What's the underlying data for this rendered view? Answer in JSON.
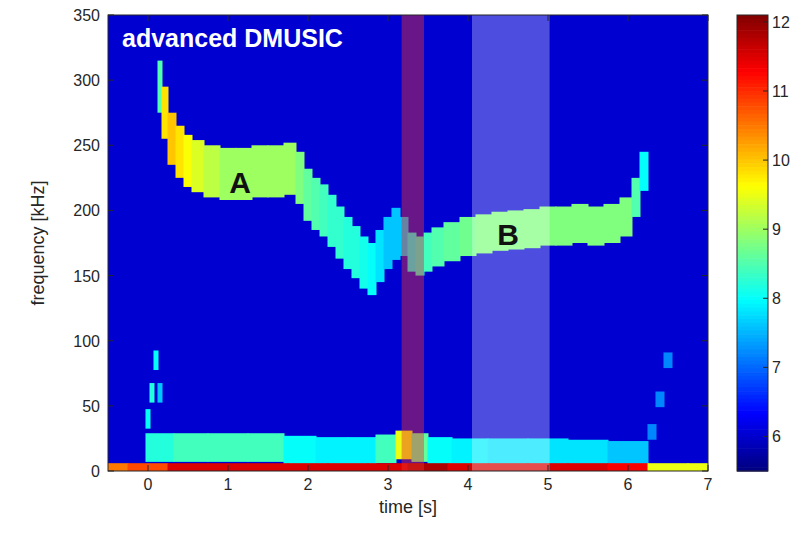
{
  "chart_data": {
    "type": "scatter",
    "title": "advanced DMUSIC",
    "x_label": "time [s]",
    "y_label": "frequency [kHz]",
    "xlim": [
      -0.5,
      7
    ],
    "ylim": [
      0,
      350
    ],
    "xticks": [
      0,
      1,
      2,
      3,
      4,
      5,
      6,
      7
    ],
    "yticks": [
      0,
      50,
      100,
      150,
      200,
      250,
      300,
      350
    ],
    "grid": false,
    "marker": "square",
    "colorbar": {
      "range": [
        5.5,
        12.1
      ],
      "ticks": [
        6,
        7,
        8,
        9,
        10,
        11,
        12
      ]
    },
    "spans": [
      {
        "x0": 3.17,
        "x1": 3.45,
        "color": "#e8302f"
      },
      {
        "x0": 4.05,
        "x1": 5.02,
        "color": "#ffffff"
      }
    ],
    "annotations": [
      {
        "text": "A",
        "x": 1.15,
        "y": 222
      },
      {
        "text": "B",
        "x": 4.5,
        "y": 182
      }
    ],
    "series": [
      {
        "x": [
          0.15,
          0.2,
          0.3,
          0.4,
          0.5,
          0.6,
          0.8,
          1.0,
          1.2,
          1.4,
          1.6,
          1.8,
          1.9,
          2.0,
          2.1,
          2.2,
          2.3,
          2.4,
          2.5,
          2.6,
          2.7,
          2.8,
          2.9,
          3.0,
          3.1
        ],
        "values": [
          295,
          275,
          255,
          245,
          238,
          234,
          230,
          228,
          228,
          230,
          230,
          232,
          225,
          212,
          205,
          200,
          192,
          183,
          175,
          168,
          160,
          155,
          165,
          175,
          182
        ],
        "intensity": [
          8.5,
          9.8,
          10,
          9.8,
          9.6,
          9.4,
          9.2,
          9,
          9,
          9,
          9,
          9,
          8.8,
          8.6,
          8.5,
          8.4,
          8.3,
          8.3,
          8.2,
          8.2,
          8.1,
          8,
          7.8,
          7.6,
          7.6
        ],
        "bandwidth": 40
      },
      {
        "x": [
          3.2,
          3.3,
          3.4,
          3.5,
          3.6,
          3.8,
          4.0,
          4.2,
          4.4,
          4.6,
          4.8,
          5.0,
          5.2,
          5.4,
          5.6,
          5.8,
          6.0,
          6.1,
          6.2
        ],
        "values": [
          180,
          168,
          165,
          168,
          172,
          176,
          180,
          182,
          184,
          185,
          186,
          188,
          188,
          190,
          188,
          190,
          195,
          210,
          230
        ],
        "intensity": [
          7.6,
          8,
          8.2,
          8.4,
          8.5,
          8.6,
          8.7,
          8.8,
          8.8,
          8.8,
          8.8,
          8.8,
          8.8,
          8.8,
          8.8,
          8.8,
          8.8,
          8.5,
          8
        ],
        "bandwidth": 30
      },
      {
        "x": [
          0.15,
          0.5,
          1,
          1.5,
          1.9,
          2.3,
          2.7,
          3.0,
          3.2,
          3.4,
          3.6,
          4.0,
          4.5,
          5.0,
          5.5,
          6.0
        ],
        "values": [
          18,
          18,
          18,
          18,
          16,
          15,
          15,
          17,
          20,
          18,
          15,
          14,
          14,
          14,
          13,
          12
        ],
        "intensity": [
          8.2,
          8.4,
          8.4,
          8.4,
          8,
          7.9,
          7.9,
          8.4,
          9.5,
          8.6,
          8,
          7.9,
          7.8,
          7.8,
          7.8,
          7.6
        ],
        "bandwidth": 22
      },
      {
        "x": [
          -0.5,
          0,
          0.5,
          1,
          1.5,
          2,
          2.5,
          3,
          3.5,
          4,
          4.5,
          5,
          5.5,
          6,
          6.5,
          7
        ],
        "values": [
          3,
          3,
          3,
          3,
          3,
          3,
          3,
          3,
          3,
          3,
          3,
          3,
          3,
          3,
          3,
          3
        ],
        "intensity": [
          10.5,
          10.8,
          11.5,
          11.5,
          11.5,
          11.5,
          11.5,
          11.5,
          11.8,
          11.5,
          11.5,
          11.5,
          11.5,
          11.3,
          9.5,
          9.5
        ],
        "bandwidth": 6
      },
      {
        "x": [
          0,
          0.05,
          0.1,
          0.15
        ],
        "values": [
          40,
          60,
          85,
          60
        ],
        "intensity": [
          8,
          8.2,
          8,
          7.6
        ],
        "bandwidth": 15
      },
      {
        "x": [
          6.3,
          6.4,
          6.5
        ],
        "values": [
          30,
          55,
          85
        ],
        "intensity": [
          7.2,
          7.2,
          7.2
        ],
        "bandwidth": 12
      }
    ]
  }
}
